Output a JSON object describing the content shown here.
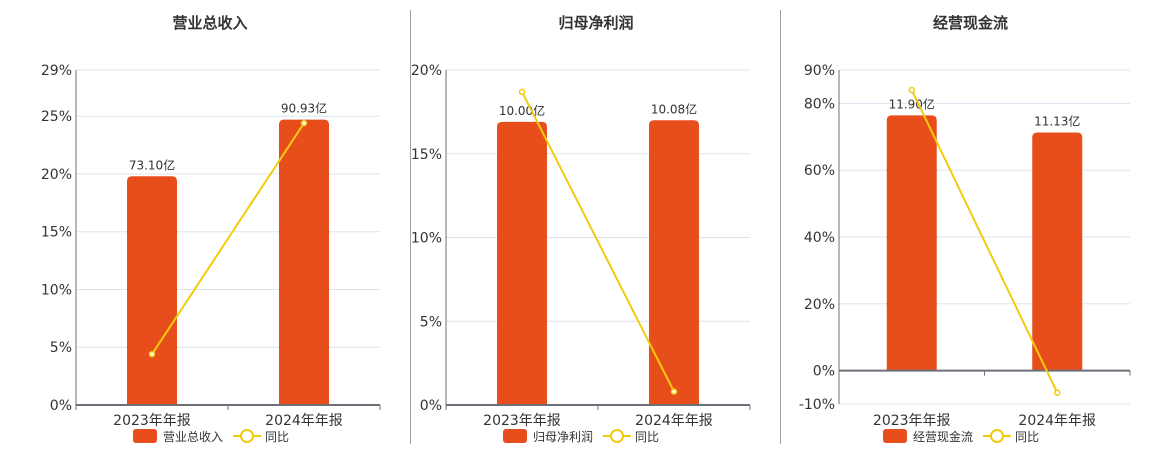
{
  "colors": {
    "bar": "#E84E1C",
    "line": "#F2CC0C",
    "grid": "#DDE3EE",
    "axis": "#6E7079",
    "text": "#333333"
  },
  "legend": {
    "yoy_label": "同比"
  },
  "chart_data": [
    {
      "type": "bar",
      "title": "营业总收入",
      "categories": [
        "2023年年报",
        "2024年年报"
      ],
      "series": [
        {
          "name": "营业总收入",
          "type": "bar",
          "values": [
            19.8,
            24.7
          ],
          "labels": [
            "73.10亿",
            "90.93亿"
          ]
        },
        {
          "name": "同比",
          "type": "line",
          "values": [
            4.4,
            24.4
          ]
        }
      ],
      "yticks": [
        "0%",
        "5%",
        "10%",
        "15%",
        "20%",
        "25%",
        "29%"
      ],
      "ytick_values": [
        0,
        5,
        10,
        15,
        20,
        25,
        29
      ],
      "ylim": [
        0,
        29
      ],
      "grid": true,
      "legend_position": "bottom"
    },
    {
      "type": "bar",
      "title": "归母净利润",
      "categories": [
        "2023年年报",
        "2024年年报"
      ],
      "series": [
        {
          "name": "归母净利润",
          "type": "bar",
          "values": [
            16.9,
            17.0
          ],
          "labels": [
            "10.00亿",
            "10.08亿"
          ]
        },
        {
          "name": "同比",
          "type": "line",
          "values": [
            18.7,
            0.8
          ]
        }
      ],
      "yticks": [
        "0%",
        "5%",
        "10%",
        "15%",
        "20%"
      ],
      "ytick_values": [
        0,
        5,
        10,
        15,
        20
      ],
      "ylim": [
        0,
        20
      ],
      "grid": true,
      "legend_position": "bottom"
    },
    {
      "type": "bar",
      "title": "经营现金流",
      "categories": [
        "2023年年报",
        "2024年年报"
      ],
      "series": [
        {
          "name": "经营现金流",
          "type": "bar",
          "values": [
            76.4,
            71.3
          ],
          "labels": [
            "11.90亿",
            "11.13亿"
          ]
        },
        {
          "name": "同比",
          "type": "line",
          "values": [
            84.0,
            -6.6
          ]
        }
      ],
      "yticks": [
        "-10%",
        "0%",
        "20%",
        "40%",
        "60%",
        "80%",
        "90%"
      ],
      "ytick_values": [
        -10,
        0,
        20,
        40,
        60,
        80,
        90
      ],
      "ylim": [
        -10,
        90
      ],
      "grid": true,
      "legend_position": "bottom"
    }
  ]
}
